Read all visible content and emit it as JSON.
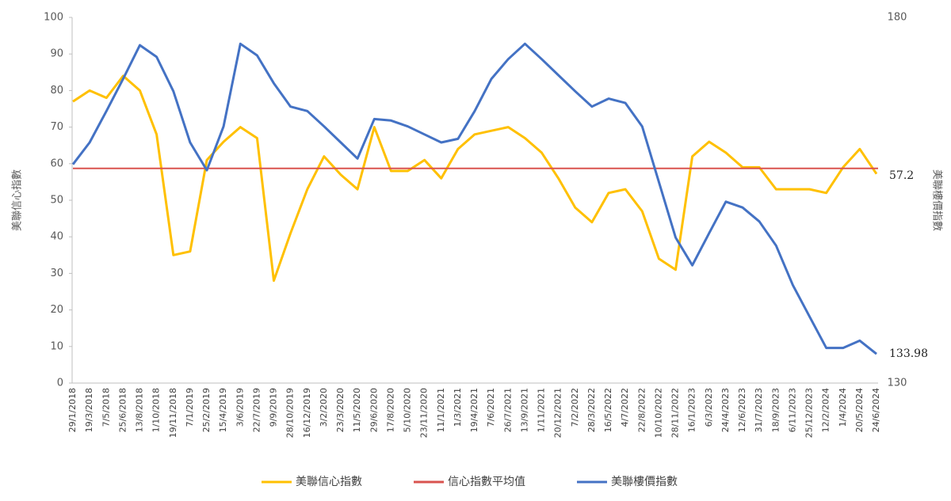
{
  "chart_data": {
    "type": "line",
    "y_label": "美聯信心指數",
    "y2_label": "美聯樓價指數",
    "categories": [
      "29/1/2018",
      "19/3/2018",
      "7/5/2018",
      "25/6/2018",
      "13/8/2018",
      "1/10/2018",
      "19/11/2018",
      "7/1/2019",
      "25/2/2019",
      "15/4/2019",
      "3/6/2019",
      "22/7/2019",
      "9/9/2019",
      "28/10/2019",
      "16/12/2019",
      "3/2/2020",
      "23/3/2020",
      "11/5/2020",
      "29/6/2020",
      "17/8/2020",
      "5/10/2020",
      "23/11/2020",
      "11/1/2021",
      "1/3/2021",
      "19/4/2021",
      "7/6/2021",
      "26/7/2021",
      "13/9/2021",
      "1/11/2021",
      "20/12/2021",
      "7/2/2022",
      "28/3/2022",
      "16/5/2022",
      "4/7/2022",
      "22/8/2022",
      "10/10/2022",
      "28/11/2022",
      "16/1/2023",
      "6/3/2023",
      "24/4/2023",
      "12/6/2023",
      "31/7/2023",
      "18/9/2023",
      "6/11/2023",
      "25/12/2023",
      "12/2/2024",
      "1/4/2024",
      "20/5/2024",
      "24/6/2024"
    ],
    "series": [
      {
        "name": "美聯信心指數",
        "color": "#ffc000",
        "values": [
          77,
          80,
          78,
          84,
          80,
          68,
          35,
          36,
          61,
          66,
          70,
          67,
          28,
          41,
          53,
          62,
          57,
          53,
          70,
          58,
          58,
          61,
          56,
          64,
          68,
          69,
          70,
          67,
          63,
          56,
          48,
          44,
          52,
          53,
          47,
          34,
          31,
          62,
          66,
          63,
          59,
          59,
          53,
          53,
          53,
          52,
          59,
          64,
          57.2
        ]
      },
      {
        "name": "信心指數平均值",
        "color": "#d9534f",
        "value": 58.7
      },
      {
        "name": "美聯樓價指數",
        "color": "#4472c4",
        "axis": "y2",
        "values": [
          159.9,
          162.9,
          167.2,
          171.6,
          176.2,
          174.6,
          169.9,
          162.9,
          159.1,
          165.1,
          176.4,
          174.8,
          171.0,
          167.8,
          167.2,
          165.1,
          162.9,
          160.7,
          166.1,
          165.9,
          165.1,
          164.0,
          162.9,
          163.4,
          167.2,
          171.6,
          174.3,
          176.4,
          174.3,
          172.1,
          169.9,
          167.8,
          168.9,
          168.3,
          165.1,
          157.5,
          149.9,
          146.1,
          150.5,
          154.8,
          154.0,
          152.1,
          148.8,
          143.4,
          139.1,
          134.8,
          134.8,
          135.8,
          133.98
        ]
      }
    ],
    "ylim": [
      0,
      100
    ],
    "yticks": [
      0,
      10,
      20,
      30,
      40,
      50,
      60,
      70,
      80,
      90,
      100
    ],
    "y2lim": [
      130,
      180
    ],
    "y2ticks": [
      130,
      180
    ],
    "legend": "bottom",
    "grid": false
  }
}
